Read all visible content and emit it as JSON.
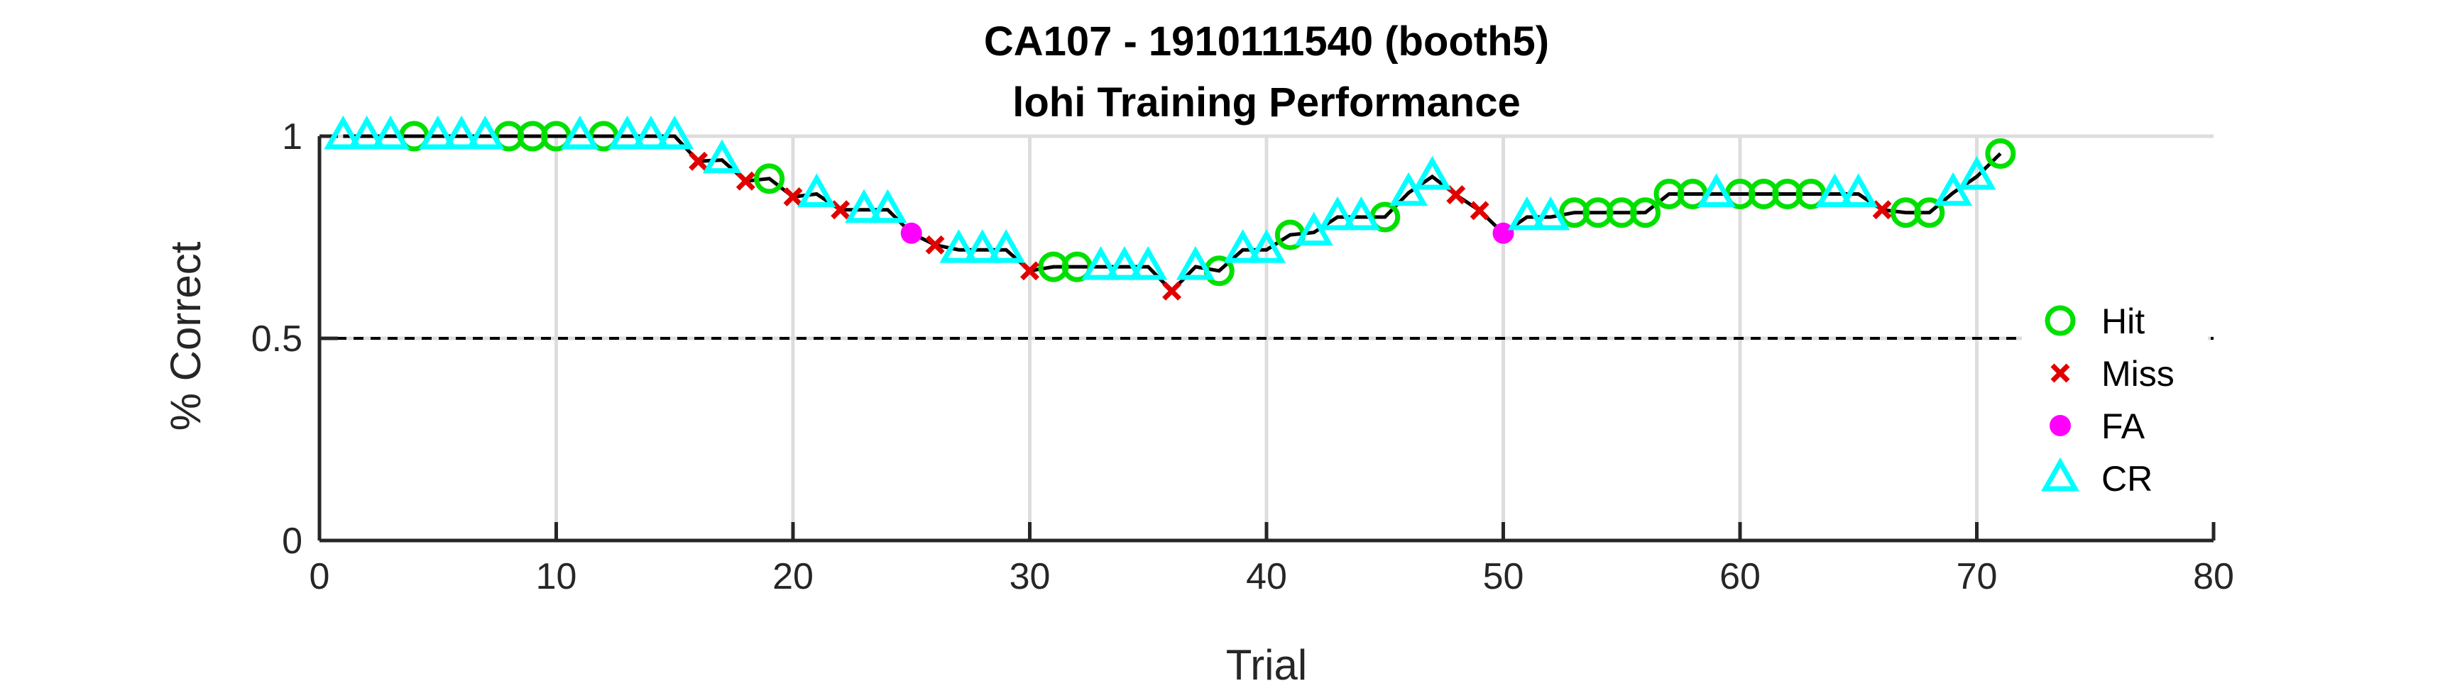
{
  "chart_data": {
    "type": "line",
    "title": "CA107 - 1910111540 (booth5)",
    "subtitle": "lohi Training Performance",
    "xlabel": "Trial",
    "ylabel": "% Correct",
    "xlim": [
      0,
      80
    ],
    "ylim": [
      0,
      1
    ],
    "xticks": [
      0,
      10,
      20,
      30,
      40,
      50,
      60,
      70,
      80
    ],
    "yticks": [
      0,
      0.5,
      1
    ],
    "grid": true,
    "reference_line": 0.5,
    "legend_position": "right",
    "colors": {
      "line": "#000000",
      "hit": "#00e000",
      "miss": "#e00000",
      "fa": "#ff00ff",
      "cr": "#00ffff",
      "grid": "#dddddd",
      "axis": "#262626"
    },
    "legend": [
      {
        "key": "hit",
        "label": "Hit",
        "marker": "circle"
      },
      {
        "key": "miss",
        "label": "Miss",
        "marker": "x"
      },
      {
        "key": "fa",
        "label": "FA",
        "marker": "dot"
      },
      {
        "key": "cr",
        "label": "CR",
        "marker": "triangle"
      }
    ],
    "series": [
      {
        "key": "hit",
        "points": [
          [
            4,
            1
          ],
          [
            8,
            1
          ],
          [
            9,
            1
          ],
          [
            10,
            1
          ],
          [
            12,
            1
          ],
          [
            19,
            0.895
          ],
          [
            31,
            0.677
          ],
          [
            32,
            0.677
          ],
          [
            38,
            0.667
          ],
          [
            41,
            0.756
          ],
          [
            45,
            0.8
          ],
          [
            53,
            0.811
          ],
          [
            54,
            0.811
          ],
          [
            55,
            0.811
          ],
          [
            56,
            0.811
          ],
          [
            57,
            0.857
          ],
          [
            58,
            0.857
          ],
          [
            60,
            0.857
          ],
          [
            61,
            0.857
          ],
          [
            62,
            0.857
          ],
          [
            63,
            0.857
          ],
          [
            67,
            0.811
          ],
          [
            68,
            0.811
          ],
          [
            71,
            0.957
          ]
        ]
      },
      {
        "key": "miss",
        "points": [
          [
            16,
            0.938
          ],
          [
            18,
            0.889
          ],
          [
            20,
            0.85
          ],
          [
            22,
            0.818
          ],
          [
            26,
            0.731
          ],
          [
            30,
            0.667
          ],
          [
            36,
            0.617
          ],
          [
            48,
            0.855
          ],
          [
            49,
            0.816
          ],
          [
            66,
            0.818
          ]
        ]
      },
      {
        "key": "fa",
        "points": [
          [
            25,
            0.76
          ],
          [
            50,
            0.76
          ]
        ]
      },
      {
        "key": "cr",
        "points": [
          [
            1,
            1
          ],
          [
            2,
            1
          ],
          [
            3,
            1
          ],
          [
            5,
            1
          ],
          [
            6,
            1
          ],
          [
            7,
            1
          ],
          [
            11,
            1
          ],
          [
            13,
            1
          ],
          [
            14,
            1
          ],
          [
            15,
            1
          ],
          [
            17,
            0.941
          ],
          [
            21,
            0.857
          ],
          [
            23,
            0.818
          ],
          [
            24,
            0.818
          ],
          [
            27,
            0.719
          ],
          [
            28,
            0.719
          ],
          [
            29,
            0.719
          ],
          [
            33,
            0.677
          ],
          [
            34,
            0.677
          ],
          [
            35,
            0.677
          ],
          [
            37,
            0.677
          ],
          [
            39,
            0.719
          ],
          [
            40,
            0.719
          ],
          [
            42,
            0.762
          ],
          [
            43,
            0.8
          ],
          [
            44,
            0.8
          ],
          [
            46,
            0.86
          ],
          [
            47,
            0.9
          ],
          [
            51,
            0.8
          ],
          [
            52,
            0.8
          ],
          [
            59,
            0.857
          ],
          [
            64,
            0.857
          ],
          [
            65,
            0.857
          ],
          [
            69,
            0.86
          ],
          [
            70,
            0.9
          ]
        ]
      }
    ],
    "line": [
      [
        1,
        1
      ],
      [
        2,
        1
      ],
      [
        3,
        1
      ],
      [
        4,
        1
      ],
      [
        5,
        1
      ],
      [
        6,
        1
      ],
      [
        7,
        1
      ],
      [
        8,
        1
      ],
      [
        9,
        1
      ],
      [
        10,
        1
      ],
      [
        11,
        1
      ],
      [
        12,
        1
      ],
      [
        13,
        1
      ],
      [
        14,
        1
      ],
      [
        15,
        1
      ],
      [
        16,
        0.938
      ],
      [
        17,
        0.941
      ],
      [
        18,
        0.889
      ],
      [
        19,
        0.895
      ],
      [
        20,
        0.85
      ],
      [
        21,
        0.857
      ],
      [
        22,
        0.818
      ],
      [
        23,
        0.818
      ],
      [
        24,
        0.818
      ],
      [
        25,
        0.76
      ],
      [
        26,
        0.731
      ],
      [
        27,
        0.719
      ],
      [
        28,
        0.719
      ],
      [
        29,
        0.719
      ],
      [
        30,
        0.667
      ],
      [
        31,
        0.677
      ],
      [
        32,
        0.677
      ],
      [
        33,
        0.677
      ],
      [
        34,
        0.677
      ],
      [
        35,
        0.677
      ],
      [
        36,
        0.617
      ],
      [
        37,
        0.677
      ],
      [
        38,
        0.667
      ],
      [
        39,
        0.719
      ],
      [
        40,
        0.719
      ],
      [
        41,
        0.756
      ],
      [
        42,
        0.762
      ],
      [
        43,
        0.8
      ],
      [
        44,
        0.8
      ],
      [
        45,
        0.8
      ],
      [
        46,
        0.86
      ],
      [
        47,
        0.9
      ],
      [
        48,
        0.855
      ],
      [
        49,
        0.816
      ],
      [
        50,
        0.76
      ],
      [
        51,
        0.8
      ],
      [
        52,
        0.8
      ],
      [
        53,
        0.811
      ],
      [
        54,
        0.811
      ],
      [
        55,
        0.811
      ],
      [
        56,
        0.811
      ],
      [
        57,
        0.857
      ],
      [
        58,
        0.857
      ],
      [
        59,
        0.857
      ],
      [
        60,
        0.857
      ],
      [
        61,
        0.857
      ],
      [
        62,
        0.857
      ],
      [
        63,
        0.857
      ],
      [
        64,
        0.857
      ],
      [
        65,
        0.857
      ],
      [
        66,
        0.818
      ],
      [
        67,
        0.811
      ],
      [
        68,
        0.811
      ],
      [
        69,
        0.86
      ],
      [
        70,
        0.9
      ],
      [
        71,
        0.957
      ]
    ]
  }
}
